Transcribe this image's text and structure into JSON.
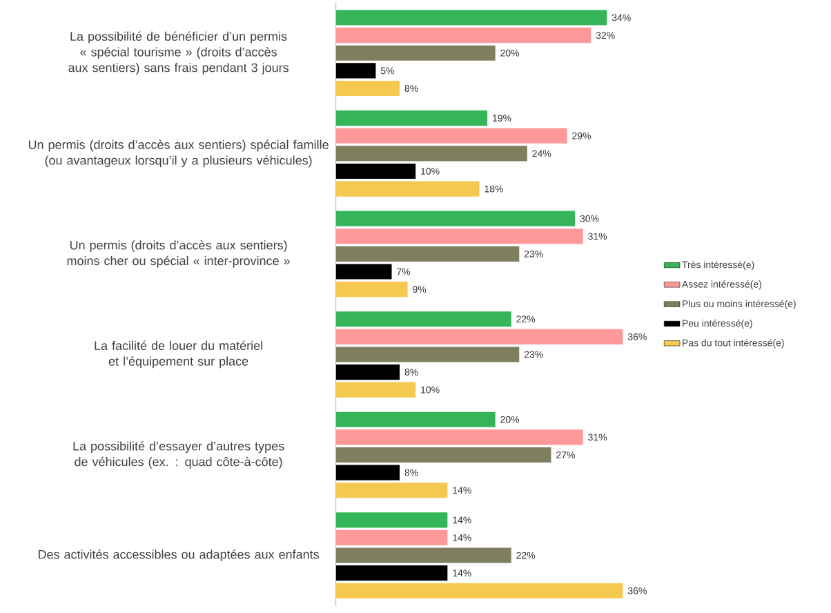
{
  "chart_data": {
    "type": "bar",
    "orientation": "horizontal",
    "categories": [
      "La possibilité de bénéficier d’un permis « spécial tourisme » (droits d’accès aux sentiers) sans frais pendant 3 jours",
      "Un permis (droits d’accès aux sentiers) spécial famille (ou avantageux lorsqu’il y a plusieurs véhicules)",
      "Un permis (droits d’accès aux sentiers) moins cher ou spécial « inter-province »",
      "La facilité de louer du matériel et l’équipement sur place",
      "La possibilité d’essayer d’autres types de véhicules (ex. : quad côte-à-côte)",
      "Des activités accessibles ou adaptées aux enfants"
    ],
    "series": [
      {
        "name": "Très intéressé(e)",
        "color": "#35b45a",
        "values": [
          34,
          19,
          30,
          22,
          20,
          14
        ],
        "value_labels": [
          "34%",
          "19%",
          "30%",
          "22%",
          "20%",
          "14%"
        ]
      },
      {
        "name": "Assez intéressé(e)",
        "color": "#ff9999",
        "values": [
          32,
          29,
          31,
          36,
          31,
          14
        ],
        "value_labels": [
          "32%",
          "29%",
          "31%",
          "36%",
          "31%",
          "14%"
        ]
      },
      {
        "name": "Plus ou moins intéressé(e)",
        "color": "#7f7f60",
        "values": [
          20,
          24,
          23,
          23,
          27,
          22
        ],
        "value_labels": [
          "20%",
          "24%",
          "23%",
          "23%",
          "27%",
          "22%"
        ]
      },
      {
        "name": "Peu intéressé(e)",
        "color": "#000000",
        "values": [
          5,
          10,
          7,
          8,
          8,
          14
        ],
        "value_labels": [
          "5%",
          "10%",
          "7%",
          "8%",
          "8%",
          "14%"
        ]
      },
      {
        "name": "Pas du tout intéressé(e)",
        "color": "#f5c850",
        "values": [
          8,
          18,
          9,
          10,
          14,
          36
        ],
        "value_labels": [
          "8%",
          "18%",
          "9%",
          "10%",
          "14%",
          "36%"
        ]
      }
    ],
    "legend": "right"
  }
}
